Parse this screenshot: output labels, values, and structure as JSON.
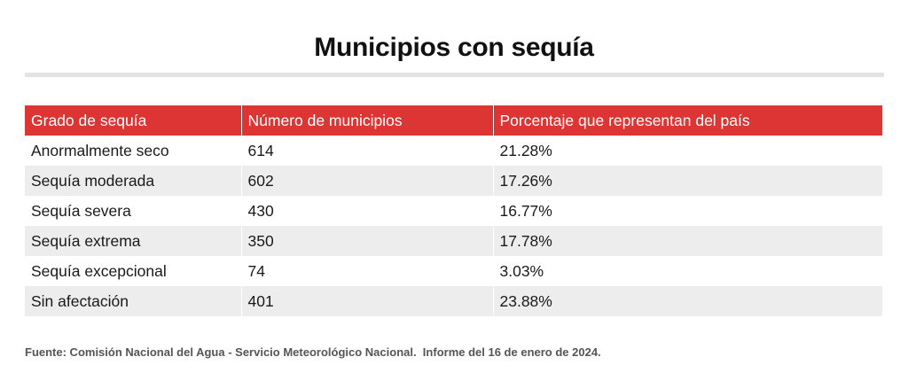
{
  "chart_data": {
    "type": "table",
    "title": "Municipios con sequía",
    "columns": [
      "Grado de sequía",
      "Número de municipios",
      "Porcentaje que representan del país"
    ],
    "rows": [
      [
        "Anormalmente seco",
        "614",
        "21.28%"
      ],
      [
        "Sequía moderada",
        "602",
        "17.26%"
      ],
      [
        "Sequía severa",
        "430",
        "16.77%"
      ],
      [
        "Sequía extrema",
        "350",
        "17.78%"
      ],
      [
        "Sequía excepcional",
        "74",
        "3.03%"
      ],
      [
        "Sin afectación",
        "401",
        "23.88%"
      ]
    ],
    "source": "Fuente: Comisión Nacional del Agua - Servicio Meteorológico Nacional.  Informe del 16 de enero de 2024."
  },
  "colors": {
    "header_background": "#dd3434",
    "header_text": "#ffffff",
    "stripe": "#ededed",
    "title_rule": "#e3e3e3"
  }
}
